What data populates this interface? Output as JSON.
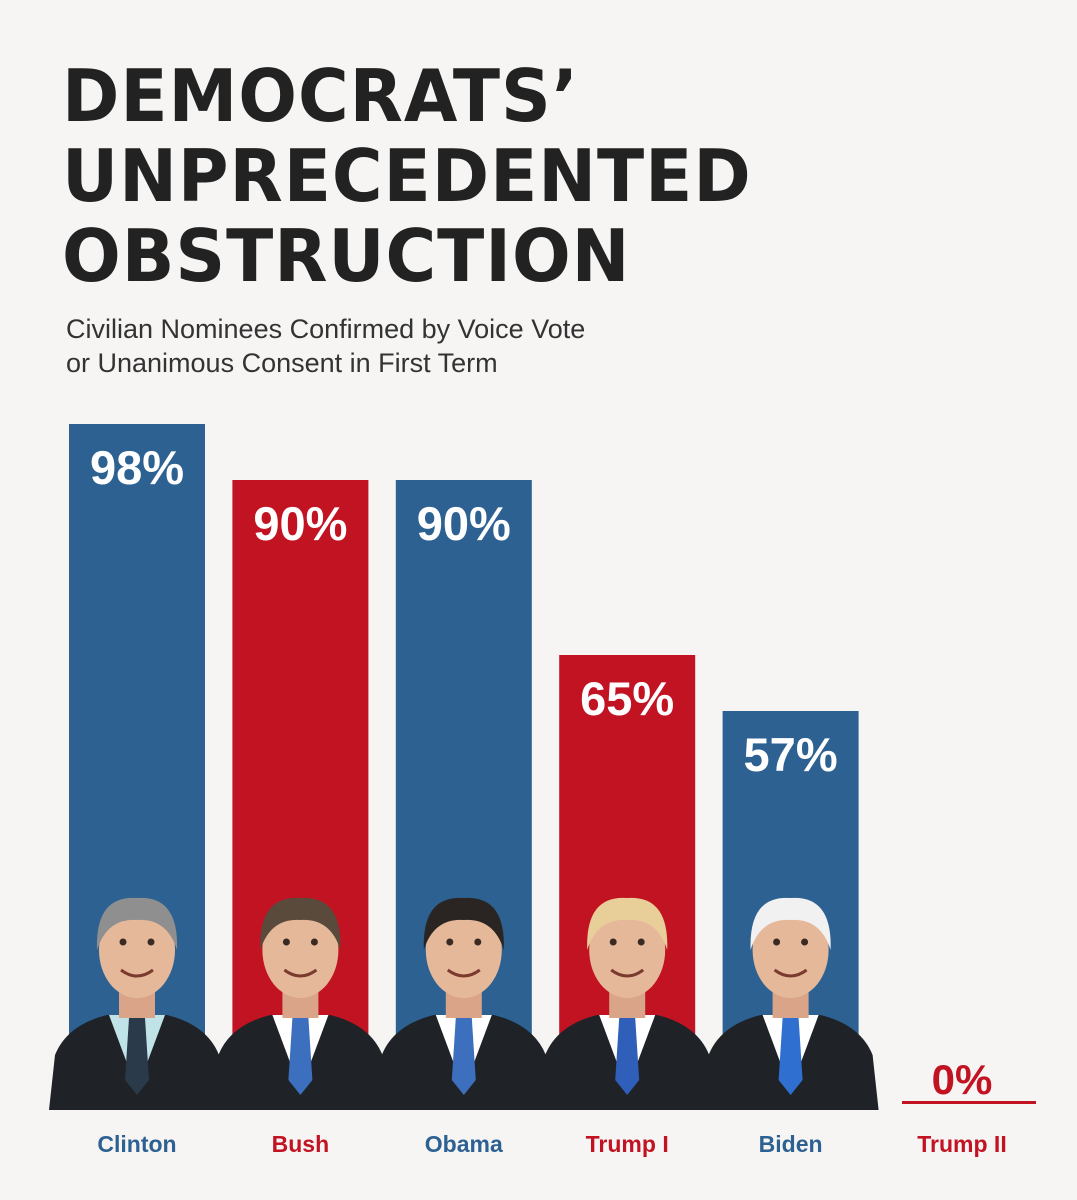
{
  "title_lines": [
    "DEMOCRATS’",
    "UNPRECEDENTED",
    "OBSTRUCTION"
  ],
  "subtitle_lines": [
    "Civilian Nominees Confirmed by Voice Vote",
    "or Unanimous Consent in First Term"
  ],
  "colors": {
    "democrat": "#2d6192",
    "republican": "#c21323",
    "background": "#f6f5f4",
    "title": "#222222"
  },
  "chart_data": {
    "type": "bar",
    "title": "DEMOCRATS’ UNPRECEDENTED OBSTRUCTION",
    "subtitle": "Civilian Nominees Confirmed by Voice Vote or Unanimous Consent in First Term",
    "xlabel": "",
    "ylabel": "",
    "ylim": [
      0,
      100
    ],
    "grid": false,
    "categories": [
      "Clinton",
      "Bush",
      "Obama",
      "Trump I",
      "Biden",
      "Trump II"
    ],
    "values": [
      98,
      90,
      90,
      65,
      57,
      0
    ],
    "value_labels": [
      "98%",
      "90%",
      "90%",
      "65%",
      "57%",
      "0%"
    ],
    "party": [
      "democrat",
      "republican",
      "democrat",
      "republican",
      "democrat",
      "republican"
    ]
  }
}
